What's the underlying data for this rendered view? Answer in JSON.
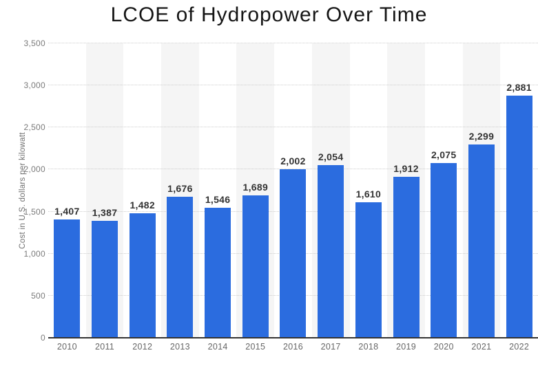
{
  "chart_data": {
    "type": "bar",
    "title": "LCOE of Hydropower Over Time",
    "xlabel": "",
    "ylabel": "Cost in U.S. dollars per kilowatt",
    "categories": [
      "2010",
      "2011",
      "2012",
      "2013",
      "2014",
      "2015",
      "2016",
      "2017",
      "2018",
      "2019",
      "2020",
      "2021",
      "2022"
    ],
    "values": [
      1407,
      1387,
      1482,
      1676,
      1546,
      1689,
      2002,
      2054,
      1610,
      1912,
      2075,
      2299,
      2881
    ],
    "value_labels": [
      "1,407",
      "1,387",
      "1,482",
      "1,676",
      "1,546",
      "1,689",
      "2,002",
      "2,054",
      "1,610",
      "1,912",
      "2,075",
      "2,299",
      "2,881"
    ],
    "ylim": [
      0,
      3500
    ],
    "ytick_step": 500,
    "ytick_labels": [
      "0",
      "500",
      "1,000",
      "1,500",
      "2,000",
      "2,500",
      "3,000",
      "3,500"
    ],
    "grid": "horizontal-dotted",
    "legend": "none",
    "colors": {
      "bar": "#2b6cdf",
      "column_band": "#f5f5f5",
      "gridline": "#cccccc",
      "axis_line": "#333333",
      "value_label": "#333333",
      "tick_label": "#7a7a7a",
      "title_text": "#151515"
    }
  }
}
